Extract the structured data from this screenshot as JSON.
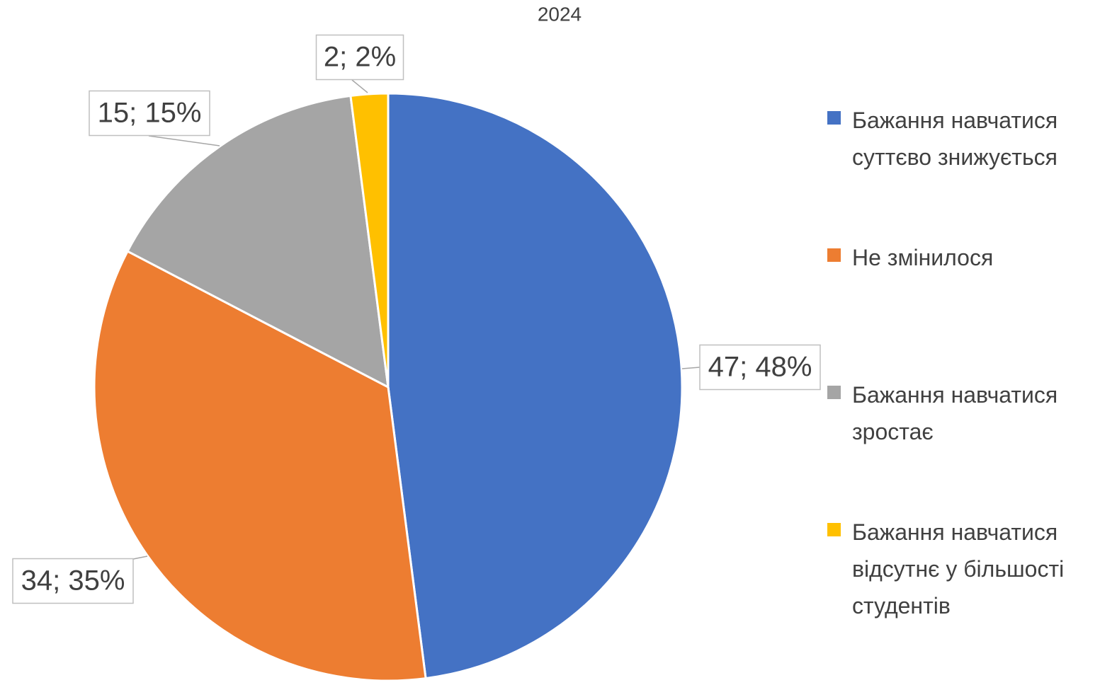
{
  "chart_data": {
    "type": "pie",
    "title": "2024",
    "categories": [
      "Бажання навчатися суттєво знижується",
      "Не змінилося",
      "Бажання навчатися зростає",
      "Бажання навчатися відсутнє у більшості студентів"
    ],
    "values": [
      47,
      34,
      15,
      2
    ],
    "value_labels": [
      "47; 48%",
      "34; 35%",
      "15; 15%",
      "2; 2%"
    ],
    "colors": [
      "#4472c4",
      "#ed7d31",
      "#a5a5a5",
      "#ffc000"
    ],
    "legend": "right"
  }
}
